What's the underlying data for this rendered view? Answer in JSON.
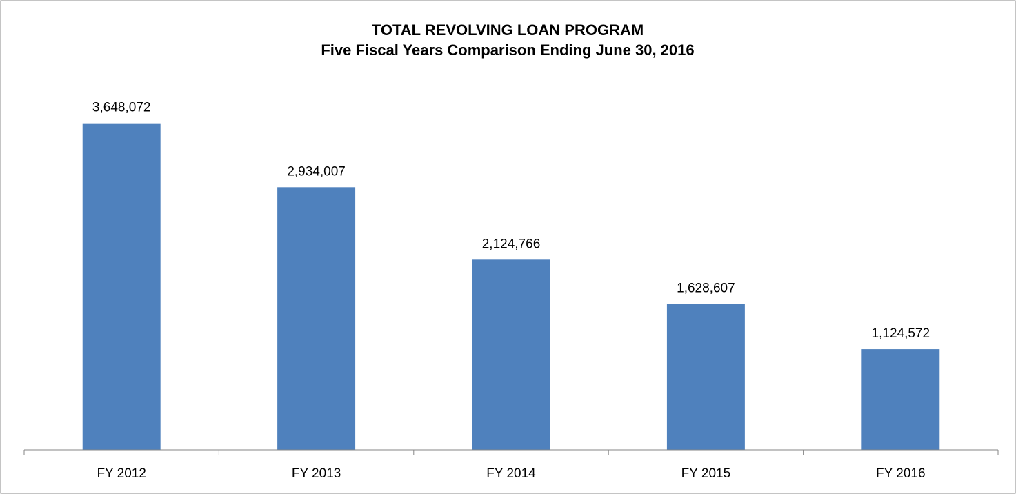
{
  "chart_data": {
    "type": "bar",
    "title": "TOTAL REVOLVING LOAN PROGRAM",
    "subtitle": "Five Fiscal Years Comparison Ending June 30, 2016",
    "categories": [
      "FY 2012",
      "FY 2013",
      "FY 2014",
      "FY 2015",
      "FY 2016"
    ],
    "values": [
      3648072,
      2934007,
      2124766,
      1628607,
      1124572
    ],
    "value_labels": [
      "3,648,072",
      "2,934,007",
      "2,124,766",
      "1,628,607",
      "1,124,572"
    ],
    "color": "#4f81bd",
    "ylim": [
      0,
      4000000
    ]
  }
}
